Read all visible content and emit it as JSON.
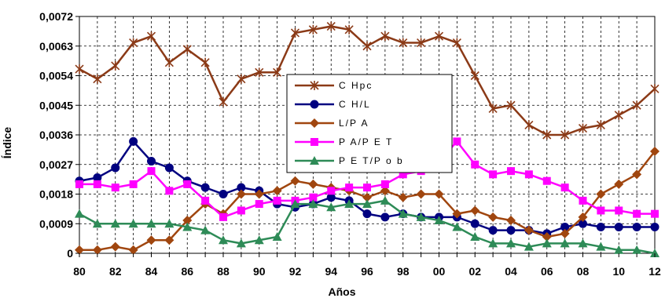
{
  "chart_data": {
    "type": "line",
    "xlabel": "Años",
    "ylabel": "Índice",
    "x": [
      80,
      81,
      82,
      83,
      84,
      85,
      86,
      87,
      88,
      89,
      90,
      91,
      92,
      93,
      94,
      95,
      96,
      97,
      98,
      99,
      0,
      1,
      2,
      3,
      4,
      5,
      6,
      7,
      8,
      9,
      10,
      11,
      12
    ],
    "x_tick_labels": [
      "80",
      "82",
      "84",
      "86",
      "88",
      "90",
      "92",
      "94",
      "96",
      "98",
      "00",
      "02",
      "04",
      "06",
      "08",
      "10",
      "12"
    ],
    "y_tick_labels": [
      "0",
      "0,0009",
      "0,0018",
      "0,0027",
      "0,0036",
      "0,0045",
      "0,0054",
      "0,0063",
      "0,0072"
    ],
    "ylim": [
      0,
      0.0072
    ],
    "grid": "dashed horizontal and vertical",
    "legend_position": "center",
    "series": [
      {
        "name": "C Hpc",
        "color": "#8B3A17",
        "marker": "star",
        "values": [
          0.0056,
          0.0053,
          0.0057,
          0.0064,
          0.0066,
          0.0058,
          0.0062,
          0.0058,
          0.0046,
          0.0053,
          0.0055,
          0.0055,
          0.0067,
          0.0068,
          0.0069,
          0.0068,
          0.0063,
          0.0066,
          0.0064,
          0.0064,
          0.0066,
          0.0064,
          0.0054,
          0.0044,
          0.0045,
          0.0039,
          0.0036,
          0.0036,
          0.0038,
          0.0039,
          0.0042,
          0.0045,
          0.005
        ]
      },
      {
        "name": "C H/L",
        "color": "#000080",
        "marker": "circle",
        "values": [
          0.0022,
          0.0023,
          0.0026,
          0.0034,
          0.0028,
          0.0026,
          0.0022,
          0.002,
          0.0018,
          0.002,
          0.0019,
          0.0015,
          0.0014,
          0.0015,
          0.0017,
          0.0016,
          0.0012,
          0.0011,
          0.0012,
          0.0011,
          0.0011,
          0.0011,
          0.0009,
          0.0007,
          0.0007,
          0.0007,
          0.0006,
          0.0008,
          0.0009,
          0.0008,
          0.0008,
          0.0008,
          0.0008
        ]
      },
      {
        "name": "L/P A",
        "color": "#A0460F",
        "marker": "diamond",
        "values": [
          0.0001,
          0.0001,
          0.0002,
          0.0001,
          0.0004,
          0.0004,
          0.001,
          0.0015,
          0.0012,
          0.0018,
          0.0018,
          0.0019,
          0.0022,
          0.0021,
          0.002,
          0.0019,
          0.0017,
          0.0019,
          0.0017,
          0.0018,
          0.0018,
          0.0012,
          0.0013,
          0.0011,
          0.001,
          0.0007,
          0.0005,
          0.0006,
          0.0011,
          0.0018,
          0.0021,
          0.0024,
          0.0031
        ]
      },
      {
        "name": "P A/P E T",
        "color": "#FF00FF",
        "marker": "square",
        "values": [
          0.0021,
          0.0021,
          0.002,
          0.0021,
          0.0025,
          0.0019,
          0.0021,
          0.0016,
          0.0011,
          0.0013,
          0.0015,
          0.0016,
          0.0016,
          0.0017,
          0.0019,
          0.002,
          0.002,
          0.0021,
          0.0024,
          0.0025,
          0.0028,
          0.0034,
          0.0027,
          0.0024,
          0.0025,
          0.0024,
          0.0022,
          0.002,
          0.0016,
          0.0013,
          0.0013,
          0.0012,
          0.0012
        ]
      },
      {
        "name": "P E T/P o b",
        "color": "#2E8B57",
        "marker": "triangle",
        "values": [
          0.0012,
          0.0009,
          0.0009,
          0.0009,
          0.0009,
          0.0009,
          0.0008,
          0.0007,
          0.0004,
          0.0003,
          0.0004,
          0.0005,
          0.0015,
          0.0015,
          0.0014,
          0.0015,
          0.0015,
          0.0016,
          0.0012,
          0.0011,
          0.001,
          0.0008,
          0.0005,
          0.0003,
          0.0003,
          0.0002,
          0.0003,
          0.0003,
          0.0003,
          0.0002,
          0.0001,
          0.0001,
          0.0
        ]
      }
    ]
  }
}
